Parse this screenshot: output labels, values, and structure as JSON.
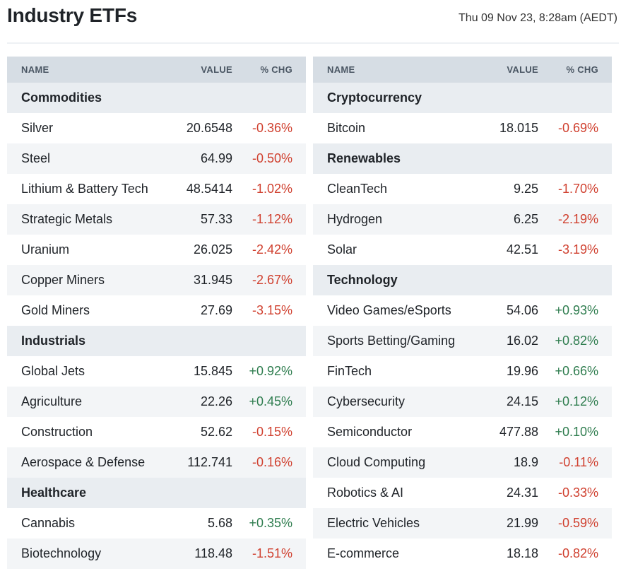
{
  "header": {
    "title": "Industry ETFs",
    "timestamp": "Thu 09 Nov 23, 8:28am (AEDT)"
  },
  "table_headers": {
    "name": "NAME",
    "value": "VALUE",
    "chg": "% CHG"
  },
  "colors": {
    "negative": "#d0402f",
    "positive": "#2f7d4f",
    "header_bg": "#d6dde4"
  },
  "columns": [
    {
      "rows": [
        {
          "type": "category",
          "name": "Commodities"
        },
        {
          "type": "item",
          "name": "Silver",
          "value": "20.6548",
          "chg": "-0.36%"
        },
        {
          "type": "item",
          "name": "Steel",
          "value": "64.99",
          "chg": "-0.50%"
        },
        {
          "type": "item",
          "name": "Lithium & Battery Tech",
          "value": "48.5414",
          "chg": "-1.02%"
        },
        {
          "type": "item",
          "name": "Strategic Metals",
          "value": "57.33",
          "chg": "-1.12%"
        },
        {
          "type": "item",
          "name": "Uranium",
          "value": "26.025",
          "chg": "-2.42%"
        },
        {
          "type": "item",
          "name": "Copper Miners",
          "value": "31.945",
          "chg": "-2.67%"
        },
        {
          "type": "item",
          "name": "Gold Miners",
          "value": "27.69",
          "chg": "-3.15%"
        },
        {
          "type": "category",
          "name": "Industrials"
        },
        {
          "type": "item",
          "name": "Global Jets",
          "value": "15.845",
          "chg": "+0.92%"
        },
        {
          "type": "item",
          "name": "Agriculture",
          "value": "22.26",
          "chg": "+0.45%"
        },
        {
          "type": "item",
          "name": "Construction",
          "value": "52.62",
          "chg": "-0.15%"
        },
        {
          "type": "item",
          "name": "Aerospace & Defense",
          "value": "112.741",
          "chg": "-0.16%"
        },
        {
          "type": "category",
          "name": "Healthcare"
        },
        {
          "type": "item",
          "name": "Cannabis",
          "value": "5.68",
          "chg": "+0.35%"
        },
        {
          "type": "item",
          "name": "Biotechnology",
          "value": "118.48",
          "chg": "-1.51%"
        }
      ]
    },
    {
      "rows": [
        {
          "type": "category",
          "name": "Cryptocurrency"
        },
        {
          "type": "item",
          "name": "Bitcoin",
          "value": "18.015",
          "chg": "-0.69%"
        },
        {
          "type": "category",
          "name": "Renewables"
        },
        {
          "type": "item",
          "name": "CleanTech",
          "value": "9.25",
          "chg": "-1.70%"
        },
        {
          "type": "item",
          "name": "Hydrogen",
          "value": "6.25",
          "chg": "-2.19%"
        },
        {
          "type": "item",
          "name": "Solar",
          "value": "42.51",
          "chg": "-3.19%"
        },
        {
          "type": "category",
          "name": "Technology"
        },
        {
          "type": "item",
          "name": "Video Games/eSports",
          "value": "54.06",
          "chg": "+0.93%"
        },
        {
          "type": "item",
          "name": "Sports Betting/Gaming",
          "value": "16.02",
          "chg": "+0.82%"
        },
        {
          "type": "item",
          "name": "FinTech",
          "value": "19.96",
          "chg": "+0.66%"
        },
        {
          "type": "item",
          "name": "Cybersecurity",
          "value": "24.15",
          "chg": "+0.12%"
        },
        {
          "type": "item",
          "name": "Semiconductor",
          "value": "477.88",
          "chg": "+0.10%"
        },
        {
          "type": "item",
          "name": "Cloud Computing",
          "value": "18.9",
          "chg": "-0.11%"
        },
        {
          "type": "item",
          "name": "Robotics & AI",
          "value": "24.31",
          "chg": "-0.33%"
        },
        {
          "type": "item",
          "name": "Electric Vehicles",
          "value": "21.99",
          "chg": "-0.59%"
        },
        {
          "type": "item",
          "name": "E-commerce",
          "value": "18.18",
          "chg": "-0.82%"
        }
      ]
    }
  ]
}
